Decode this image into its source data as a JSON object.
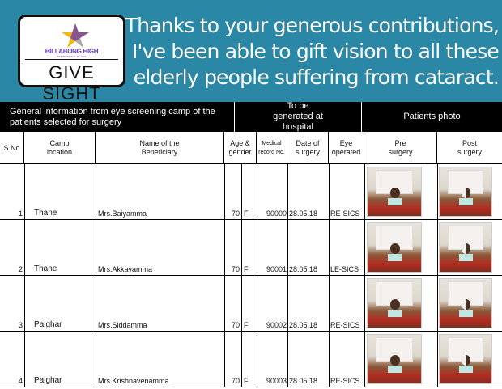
{
  "banner": {
    "logo_school": "BILLABONG HIGH",
    "logo_subtitle": "INTERNATIONAL SCHOOL",
    "logo_title": "GIVE SIGHT",
    "tagline": "Thanks to your generous contributions, I've been able to gift vision to all these elderly people suffering from cataract.",
    "color": "#2a87a6"
  },
  "table": {
    "group_headers": [
      "General information from eye screening camp of the patients selected for surgery",
      "To be generated at hospital",
      "Patients photo"
    ],
    "columns": [
      "S.No",
      "Camp location",
      "Name of the Beneficiary",
      "Age & gender",
      "Medical record No.",
      "Date of surgery",
      "Eye operated",
      "Pre surgery",
      "Post surgery"
    ],
    "rows": [
      {
        "sno": "1",
        "camp": "Thane",
        "name": "Mrs.Baiyamma",
        "age": "70",
        "gender": "F",
        "mrn": "90000",
        "date": "28.05.18",
        "eye": "RE-SICS"
      },
      {
        "sno": "2",
        "camp": "Thane",
        "name": "Mrs.Akkayamma",
        "age": "70",
        "gender": "F",
        "mrn": "90001",
        "date": "28.05.18",
        "eye": "LE-SICS"
      },
      {
        "sno": "3",
        "camp": "Palghar",
        "name": "Mrs.Siddamma",
        "age": "70",
        "gender": "F",
        "mrn": "90002",
        "date": "28.05.18",
        "eye": "RE-SICS"
      },
      {
        "sno": "4",
        "camp": "Palghar",
        "name": "Mrs.Krishnavenamma",
        "age": "70",
        "gender": "F",
        "mrn": "90003",
        "date": "28.05.18",
        "eye": "RE-SICS"
      }
    ]
  }
}
